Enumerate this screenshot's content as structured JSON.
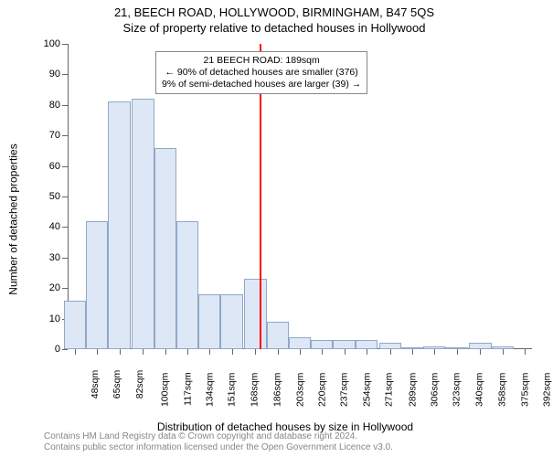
{
  "title_line1": "21, BEECH ROAD, HOLLYWOOD, BIRMINGHAM, B47 5QS",
  "title_line2": "Size of property relative to detached houses in Hollywood",
  "ylabel": "Number of detached properties",
  "xlabel": "Distribution of detached houses by size in Hollywood",
  "copyright_line1": "Contains HM Land Registry data © Crown copyright and database right 2024.",
  "copyright_line2": "Contains public sector information licensed under the Open Government Licence v3.0.",
  "annotation": {
    "line1": "21 BEECH ROAD: 189sqm",
    "line2": "← 90% of detached houses are smaller (376)",
    "line3": "9% of semi-detached houses are larger (39) →"
  },
  "chart": {
    "type": "histogram",
    "ylim": [
      0,
      100
    ],
    "ytick_step": 10,
    "bar_fill": "#dde7f5",
    "bar_stroke": "#90a8c8",
    "marker_color": "#ff0000",
    "marker_x_value": 189,
    "background_color": "#ffffff",
    "axis_color": "#666666",
    "text_color": "#000000",
    "title_fontsize": 13,
    "label_fontsize": 12,
    "tick_fontsize": 11,
    "x_tick_labels": [
      "48sqm",
      "65sqm",
      "82sqm",
      "100sqm",
      "117sqm",
      "134sqm",
      "151sqm",
      "168sqm",
      "186sqm",
      "203sqm",
      "220sqm",
      "237sqm",
      "254sqm",
      "271sqm",
      "289sqm",
      "306sqm",
      "323sqm",
      "340sqm",
      "358sqm",
      "375sqm",
      "392sqm"
    ],
    "x_tick_values": [
      48,
      65,
      82,
      100,
      117,
      134,
      151,
      168,
      186,
      203,
      220,
      237,
      254,
      271,
      289,
      306,
      323,
      340,
      358,
      375,
      392
    ],
    "values": [
      16,
      42,
      81,
      82,
      66,
      42,
      18,
      18,
      23,
      9,
      4,
      3,
      3,
      3,
      2,
      0,
      1,
      0,
      2,
      1
    ]
  }
}
